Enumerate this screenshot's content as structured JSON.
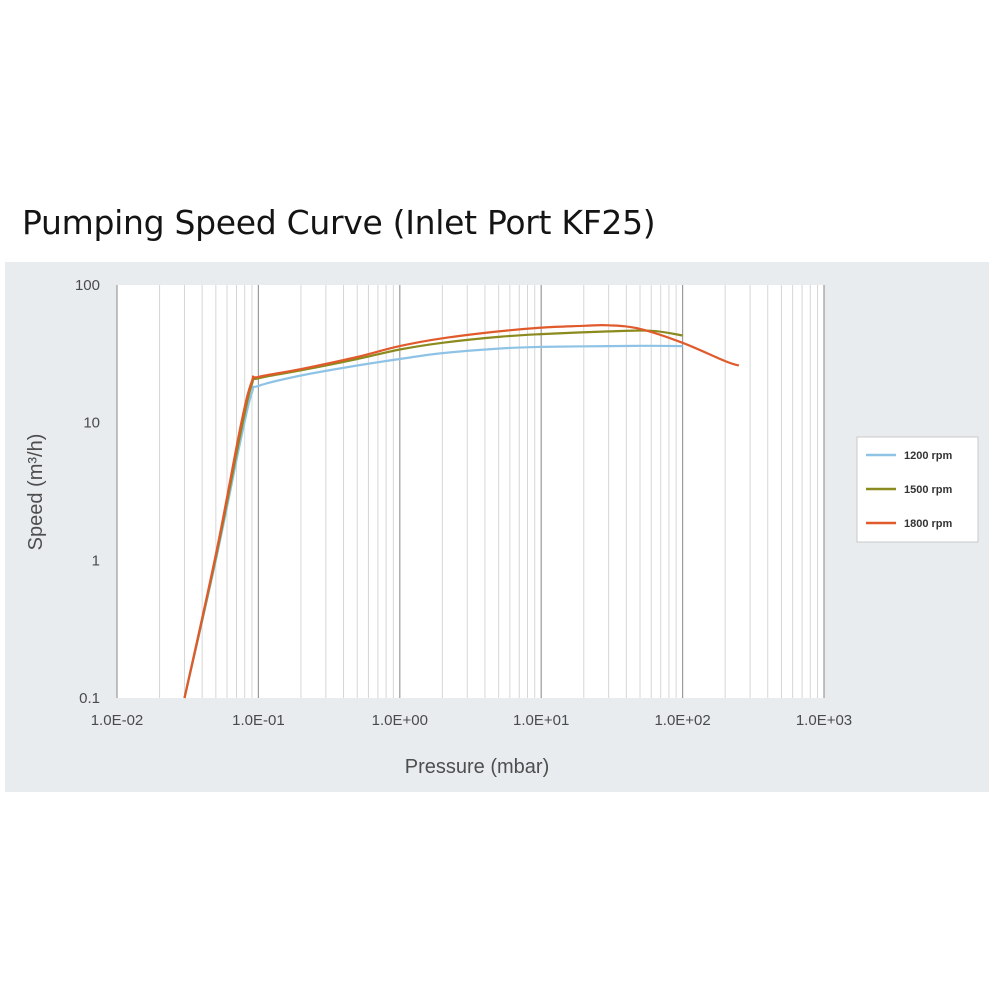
{
  "chart_data": {
    "type": "line",
    "title": "Pumping Speed Curve (Inlet Port KF25)",
    "xlabel": "Pressure (mbar)",
    "ylabel": "Speed (m³/h)",
    "x_scale": "log",
    "y_scale": "log",
    "xlim": [
      0.01,
      1000
    ],
    "ylim": [
      0.1,
      100
    ],
    "x_ticks": [
      0.01,
      0.1,
      1,
      10,
      100,
      1000
    ],
    "x_tick_labels": [
      "1.0E-02",
      "1.0E-01",
      "1.0E+00",
      "1.0E+01",
      "1.0E+02",
      "1.0E+03"
    ],
    "y_ticks": [
      0.1,
      1,
      10,
      100
    ],
    "y_tick_labels": [
      "0.1",
      "1",
      "10",
      "100"
    ],
    "grid": true,
    "legend_position": "right",
    "series": [
      {
        "name": "1200 rpm",
        "color": "#8ec3e6",
        "x": [
          0.03,
          0.05,
          0.075,
          0.09,
          0.1,
          0.2,
          0.5,
          1,
          2,
          5,
          10,
          30,
          60,
          100
        ],
        "y": [
          0.1,
          1.0,
          7.5,
          16.5,
          18.5,
          22,
          26,
          29,
          32,
          34.5,
          35.5,
          36,
          36.2,
          36
        ]
      },
      {
        "name": "1500 rpm",
        "color": "#8a8a1e",
        "x": [
          0.03,
          0.05,
          0.075,
          0.09,
          0.1,
          0.2,
          0.5,
          1,
          2,
          5,
          10,
          30,
          60,
          100
        ],
        "y": [
          0.1,
          1.05,
          8.5,
          19,
          21,
          24,
          29,
          34,
          38,
          42,
          44,
          46,
          46.5,
          43
        ]
      },
      {
        "name": "1800 rpm",
        "color": "#e05a2c",
        "x": [
          0.03,
          0.05,
          0.075,
          0.09,
          0.1,
          0.2,
          0.5,
          1,
          2,
          5,
          10,
          20,
          30,
          50,
          100,
          200,
          250
        ],
        "y": [
          0.1,
          1.1,
          9.5,
          20,
          21.5,
          24.5,
          30,
          36,
          41,
          46,
          49,
          50.5,
          51,
          48,
          38,
          28,
          26
        ]
      }
    ]
  }
}
